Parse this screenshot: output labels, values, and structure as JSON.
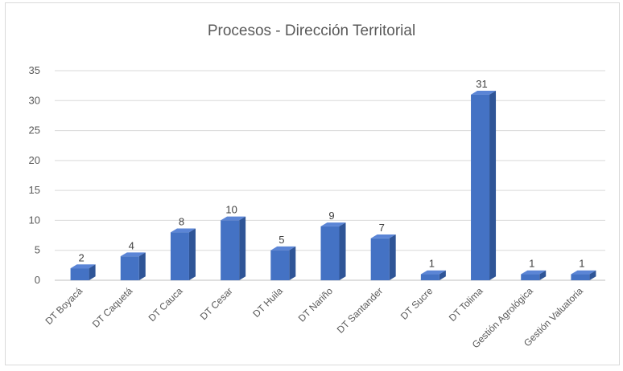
{
  "chart_data": {
    "type": "bar",
    "title": "Procesos - Dirección Territorial",
    "xlabel": "",
    "ylabel": "",
    "categories": [
      "DT Boyacá",
      "DT Caquetá",
      "DT Cauca",
      "DT Cesar",
      "DT Huila",
      "DT Nariño",
      "DT Santander",
      "DT Sucre",
      "DT Tolima",
      "Gestión Agrológica",
      "Gestión Valuatoria"
    ],
    "values": [
      2,
      4,
      8,
      10,
      5,
      9,
      7,
      1,
      31,
      1,
      1
    ],
    "ylim": [
      0,
      35
    ],
    "yticks": [
      0,
      5,
      10,
      15,
      20,
      25,
      30,
      35
    ],
    "grid": true,
    "legend": "none",
    "bar_color": "#4472c4",
    "bar_side_color": "#2f5597",
    "bar_top_color": "#5b85d6"
  }
}
